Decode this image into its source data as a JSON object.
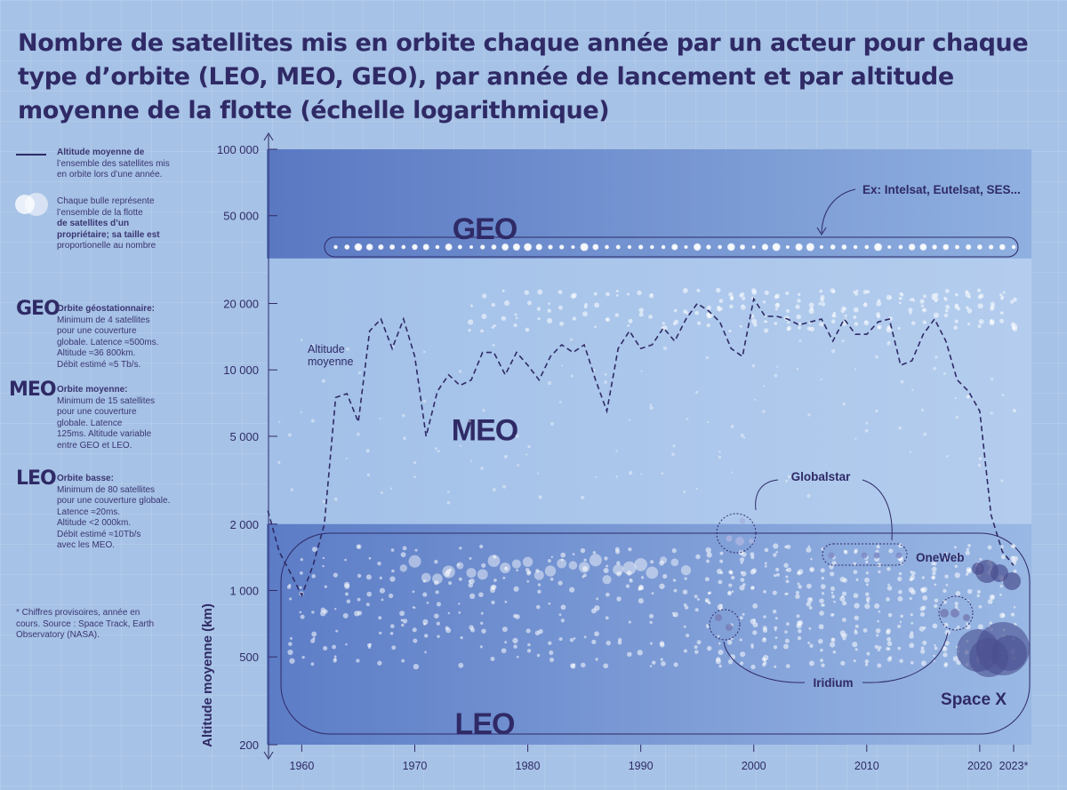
{
  "title": "Nombre de satellites mis en orbite chaque année par un acteur pour chaque type d’orbite (LEO, MEO, GEO), par année de lancement et par altitude moyenne de la flotte (échelle logarithmique)",
  "legend": {
    "line_bold": "Altitude moyenne de",
    "line_rest": [
      "l’ensemble des satellites mis",
      "en orbite lors d’une année."
    ],
    "bubble_1": [
      "Chaque bulle représente",
      "l’ensemble de la flotte"
    ],
    "bubble_bold": [
      "de satellites d’un",
      "propriétaire; sa taille est"
    ],
    "bubble_2": "proportionelle au nombre",
    "geo": {
      "abbr": "GEO",
      "bold": "Orbite géostationnaire:",
      "lines": [
        "Minimum de 4 satellites",
        "pour une couverture",
        "globale. Latence ≈500ms.",
        "Altitude ≈36 800km.",
        "Débit estimé ≈5 Tb/s."
      ]
    },
    "meo": {
      "abbr": "MEO",
      "bold": "Orbite moyenne:",
      "lines": [
        "Minimum de 15 satellites",
        "pour une couverture",
        "globale. Latence",
        "125ms. Altitude variable",
        "entre GEO et LEO."
      ]
    },
    "leo": {
      "abbr": "LEO",
      "bold": "Orbite basse:",
      "lines": [
        "Minimum de 80 satellites",
        "pour une couverture globale.",
        "Latence ≈20ms.",
        "Altitude <2 000km.",
        "Débit estimé ≈10Tb/s",
        "avec les MEO."
      ]
    },
    "footnote": [
      "* Chiffres provisoires, année en",
      "cours. Source : Space Track, Earth",
      "Observatory (NASA)."
    ]
  },
  "annotations": {
    "geo_example": "Ex: Intelsat, Eutelsat, SES...",
    "globalstar": "Globalstar",
    "oneweb": "OneWeb",
    "iridium": "Iridium",
    "spacex": "Space X",
    "avg_label": [
      "Altitude",
      "moyenne"
    ]
  },
  "colors": {
    "background": "#a6c2e6",
    "geo_band": "#5f80c8",
    "leo_band": "#6e8fd0",
    "line": "#2f2a66",
    "bubble": "#ffffff",
    "bubble_large": "#4a4f8f"
  },
  "chart_data": {
    "type": "scatter",
    "title": "Nombre de satellites mis en orbite chaque année par un acteur pour chaque type d’orbite (LEO, MEO, GEO), par année de lancement et par altitude moyenne de la flotte (échelle logarithmique)",
    "ylabel": "Altitude moyenne (km)",
    "xlabel": "",
    "yscale": "log",
    "xlim": [
      1957,
      2024
    ],
    "ylim": [
      200,
      100000
    ],
    "x_ticks": [
      "1960",
      "1970",
      "1980",
      "1990",
      "2000",
      "2010",
      "2020",
      "2023*"
    ],
    "x_tick_values": [
      1960,
      1970,
      1980,
      1990,
      2000,
      2010,
      2020,
      2023
    ],
    "y_ticks": [
      "100 000",
      "50 000",
      "20 000",
      "10 000",
      "5 000",
      "2 000",
      "1 000",
      "500",
      "200"
    ],
    "y_tick_values": [
      100000,
      50000,
      20000,
      10000,
      5000,
      2000,
      1000,
      500,
      200
    ],
    "regions": [
      {
        "name": "GEO",
        "from": 32000,
        "to": 100000
      },
      {
        "name": "MEO",
        "from": 2000,
        "to": 32000
      },
      {
        "name": "LEO",
        "from": 200,
        "to": 2000
      }
    ],
    "series": [
      {
        "name": "Altitude moyenne",
        "type": "line",
        "x": [
          1957,
          1958,
          1959,
          1960,
          1961,
          1962,
          1963,
          1964,
          1965,
          1966,
          1967,
          1968,
          1969,
          1970,
          1971,
          1972,
          1973,
          1974,
          1975,
          1976,
          1977,
          1978,
          1979,
          1980,
          1981,
          1982,
          1983,
          1984,
          1985,
          1986,
          1987,
          1988,
          1989,
          1990,
          1991,
          1992,
          1993,
          1994,
          1995,
          1996,
          1997,
          1998,
          1999,
          2000,
          2001,
          2002,
          2003,
          2004,
          2005,
          2006,
          2007,
          2008,
          2009,
          2010,
          2011,
          2012,
          2013,
          2014,
          2015,
          2016,
          2017,
          2018,
          2019,
          2020,
          2021,
          2022,
          2023
        ],
        "y": [
          2300,
          1500,
          1200,
          950,
          1300,
          2000,
          7500,
          7800,
          5800,
          15000,
          17000,
          12500,
          17000,
          11500,
          5000,
          8000,
          9500,
          8500,
          9000,
          12000,
          12000,
          9500,
          12000,
          10500,
          9000,
          11500,
          13000,
          12000,
          13000,
          9000,
          6500,
          12500,
          15000,
          12500,
          13000,
          15500,
          13500,
          17000,
          20000,
          18500,
          16500,
          12500,
          11500,
          21000,
          17500,
          17500,
          17000,
          16000,
          16500,
          17000,
          13500,
          17000,
          14500,
          14500,
          16500,
          17000,
          10500,
          11000,
          14500,
          17000,
          13500,
          9000,
          8000,
          6500,
          2200,
          1500,
          1300
        ]
      },
      {
        "name": "GEO",
        "type": "bubbles",
        "note": "Chaque bulle représente l’ensemble de la flotte de satellites d’un propriétaire; sa taille est proportionelle au nombre",
        "points": []
      }
    ]
  }
}
